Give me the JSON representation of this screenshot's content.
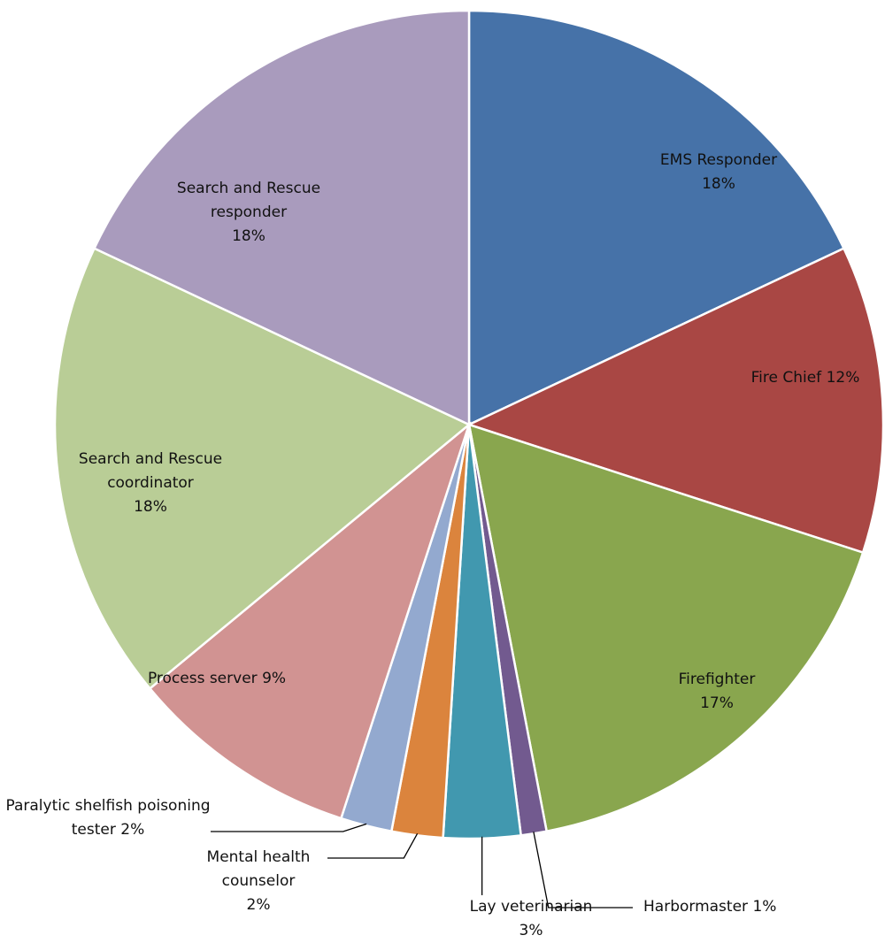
{
  "chart_data": {
    "type": "pie",
    "categories": [
      "EMS Responder",
      "Fire Chief",
      "Firefighter",
      "Harbormaster",
      "Lay veterinarian",
      "Mental health counselor",
      "Paralytic shelfish poisoning tester",
      "Process server",
      "Search and Rescue coordinator",
      "Search and Rescue responder"
    ],
    "values": [
      18,
      12,
      17,
      1,
      3,
      2,
      2,
      9,
      18,
      18
    ],
    "value_labels": [
      "18%",
      "12%",
      "17%",
      "1%",
      "3%",
      "2%",
      "2%",
      "9%",
      "18%",
      "18%"
    ],
    "colors": [
      "#4672a8",
      "#a94744",
      "#89a64e",
      "#725a8f",
      "#4198af",
      "#db843d",
      "#93a9cf",
      "#d19392",
      "#b9cd96",
      "#a99bbd"
    ]
  }
}
